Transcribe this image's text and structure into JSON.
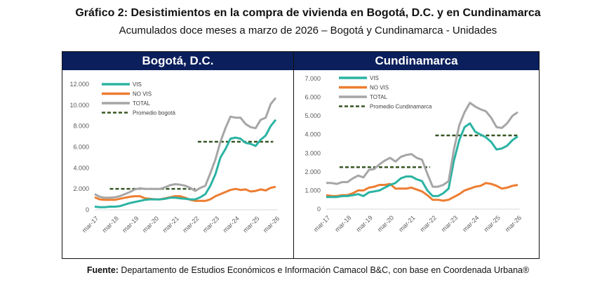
{
  "title": "Gráfico 2: Desistimientos en la compra de vivienda en Bogotá, D.C. y en Cundinamarca",
  "subtitle": "Acumulados doce meses a marzo de 2026 – Bogotá y Cundinamarca - Unidades",
  "footer": {
    "label": "Fuente:",
    "text": " Departamento de Estudios Económicos e Información Camacol B&C, con base en Coordenada Urbana®"
  },
  "colors": {
    "vis": "#2bb3a3",
    "novis": "#ed7d31",
    "total": "#a6a6a6",
    "avg": "#375623",
    "header": "#0b1f5c"
  },
  "chart_data": [
    {
      "type": "line",
      "title": "Bogotá, D.C.",
      "xlabel": "",
      "ylabel": "",
      "ylim": [
        0,
        12000
      ],
      "yticks": [
        "0",
        "2.000",
        "4.000",
        "6.000",
        "8.000",
        "10.000",
        "12.000"
      ],
      "xticks": [
        "mar-17",
        "mar-18",
        "mar-19",
        "mar-20",
        "mar-21",
        "mar-22",
        "mar-23",
        "mar-24",
        "mar-25",
        "mar-26"
      ],
      "frequency": "quarterly",
      "series": [
        {
          "name": "VIS",
          "values": [
            300,
            250,
            250,
            300,
            300,
            350,
            500,
            650,
            750,
            850,
            950,
            1000,
            1000,
            1000,
            1050,
            1150,
            1150,
            1100,
            1050,
            1000,
            1000,
            1200,
            1500,
            2300,
            3400,
            5000,
            5800,
            6800,
            6900,
            6800,
            6400,
            6300,
            6100,
            6700,
            7100,
            8000,
            8600
          ]
        },
        {
          "name": "NO VIS",
          "values": [
            1200,
            1000,
            950,
            950,
            950,
            1050,
            1150,
            1250,
            1300,
            1300,
            1100,
            1050,
            1000,
            1000,
            1100,
            1200,
            1300,
            1300,
            1150,
            950,
            850,
            850,
            850,
            1000,
            1300,
            1500,
            1700,
            1900,
            2000,
            1900,
            1950,
            1750,
            1800,
            1950,
            1850,
            2100,
            2200
          ]
        },
        {
          "name": "TOTAL",
          "values": [
            1500,
            1250,
            1150,
            1150,
            1200,
            1300,
            1500,
            1700,
            1950,
            2050,
            2000,
            2000,
            2000,
            2000,
            2150,
            2350,
            2450,
            2400,
            2300,
            2100,
            1800,
            2100,
            2300,
            3500,
            4800,
            6500,
            7800,
            8900,
            8800,
            8800,
            8200,
            7900,
            7800,
            8600,
            8800,
            10100,
            10700
          ]
        }
      ],
      "averages": [
        {
          "name": "Promedio bogotá",
          "value": 2000,
          "from": 3,
          "to": 20
        },
        {
          "name": "Promedio bogotá",
          "value": 6500,
          "from": 20.5,
          "to": 35.5
        }
      ]
    },
    {
      "type": "line",
      "title": "Cundinamarca",
      "xlabel": "",
      "ylabel": "",
      "ylim": [
        0,
        7000
      ],
      "yticks": [
        "0",
        "1.000",
        "2.000",
        "3.000",
        "4.000",
        "5.000",
        "6.000",
        "7.000"
      ],
      "xticks": [
        "mar-17",
        "mar-18",
        "mar-19",
        "mar-20",
        "mar-21",
        "mar-22",
        "mar-23",
        "mar-24",
        "mar-25",
        "mar-26"
      ],
      "frequency": "quarterly",
      "series": [
        {
          "name": "VIS",
          "values": [
            650,
            650,
            650,
            700,
            700,
            750,
            800,
            700,
            900,
            950,
            1000,
            1150,
            1300,
            1400,
            1650,
            1750,
            1750,
            1600,
            1500,
            1000,
            700,
            700,
            850,
            1100,
            2600,
            3700,
            4400,
            4600,
            4150,
            4000,
            3850,
            3600,
            3200,
            3250,
            3400,
            3700,
            3900
          ]
        },
        {
          "name": "NO VIS",
          "values": [
            750,
            700,
            700,
            750,
            750,
            850,
            1000,
            1000,
            1150,
            1200,
            1300,
            1300,
            1350,
            1100,
            1100,
            1100,
            1150,
            1050,
            950,
            750,
            500,
            500,
            450,
            500,
            650,
            800,
            1000,
            1100,
            1200,
            1250,
            1400,
            1350,
            1250,
            1100,
            1150,
            1250,
            1300
          ]
        },
        {
          "name": "TOTAL",
          "values": [
            1400,
            1400,
            1350,
            1450,
            1450,
            1650,
            1800,
            1700,
            2100,
            2150,
            2400,
            2600,
            2750,
            2550,
            2800,
            2900,
            2950,
            2750,
            2650,
            1900,
            1200,
            1200,
            1300,
            1500,
            3200,
            4500,
            5200,
            5700,
            5500,
            5350,
            5250,
            4900,
            4400,
            4350,
            4600,
            5000,
            5200
          ]
        }
      ],
      "averages": [
        {
          "name": "Promedio Cundinamarca",
          "value": 2250,
          "from": 2.5,
          "to": 19.5
        },
        {
          "name": "Promedio Cundinamarca",
          "value": 3950,
          "from": 20.5,
          "to": 36
        }
      ]
    }
  ]
}
